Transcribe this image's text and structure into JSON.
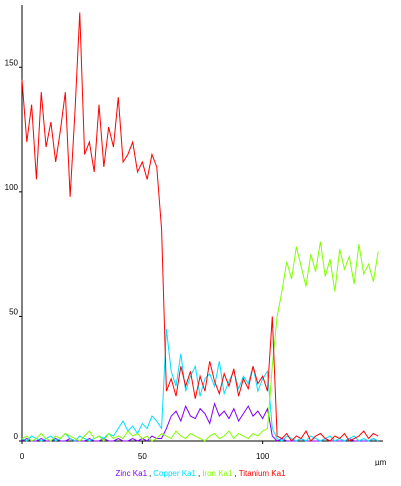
{
  "chart_data": {
    "type": "line",
    "x_label": "µm",
    "x": [
      0,
      2,
      4,
      6,
      8,
      10,
      12,
      14,
      16,
      18,
      20,
      22,
      24,
      26,
      28,
      30,
      32,
      34,
      36,
      38,
      40,
      42,
      44,
      46,
      48,
      50,
      52,
      54,
      56,
      58,
      60,
      62,
      64,
      66,
      68,
      70,
      72,
      74,
      76,
      78,
      80,
      82,
      84,
      86,
      88,
      90,
      92,
      94,
      96,
      98,
      100,
      102,
      104,
      106,
      108,
      110,
      112,
      114,
      116,
      118,
      120,
      122,
      124,
      126,
      128,
      130,
      132,
      134,
      136,
      138,
      140,
      142,
      144,
      146,
      148
    ],
    "series": [
      {
        "name": "Zinc Ka1",
        "color": "#8000ff",
        "values": [
          0,
          1,
          0,
          0,
          1,
          0,
          0,
          1,
          0,
          0,
          1,
          0,
          0,
          0,
          1,
          0,
          0,
          1,
          0,
          0,
          1,
          0,
          0,
          1,
          0,
          1,
          0,
          2,
          1,
          1,
          5,
          10,
          12,
          8,
          14,
          10,
          9,
          13,
          11,
          7,
          15,
          10,
          12,
          9,
          13,
          8,
          11,
          14,
          10,
          12,
          9,
          13,
          2,
          0,
          1,
          0,
          0,
          0,
          1,
          0,
          0,
          0,
          0,
          1,
          0,
          0,
          0,
          0,
          1,
          0,
          0,
          0,
          0,
          1,
          0
        ]
      },
      {
        "name": "Copper Ka1",
        "color": "#00e0ff",
        "values": [
          1,
          0,
          2,
          1,
          0,
          1,
          2,
          0,
          1,
          3,
          1,
          0,
          2,
          1,
          0,
          1,
          2,
          1,
          3,
          2,
          5,
          8,
          4,
          6,
          3,
          7,
          5,
          10,
          8,
          5,
          45,
          28,
          22,
          35,
          20,
          26,
          30,
          18,
          25,
          27,
          22,
          32,
          19,
          24,
          28,
          21,
          26,
          23,
          30,
          20,
          25,
          28,
          5,
          1,
          0,
          2,
          1,
          0,
          1,
          0,
          2,
          1,
          0,
          1,
          2,
          0,
          1,
          0,
          1,
          2,
          0,
          1,
          0,
          1,
          0
        ]
      },
      {
        "name": "Iron Ka1",
        "color": "#80ff00",
        "values": [
          1,
          2,
          0,
          1,
          3,
          1,
          0,
          2,
          1,
          3,
          2,
          1,
          0,
          2,
          4,
          1,
          2,
          0,
          3,
          1,
          2,
          1,
          4,
          2,
          3,
          1,
          2,
          0,
          1,
          3,
          2,
          1,
          4,
          2,
          1,
          3,
          2,
          1,
          0,
          2,
          3,
          1,
          2,
          4,
          1,
          3,
          2,
          1,
          3,
          2,
          4,
          5,
          30,
          50,
          60,
          72,
          65,
          78,
          70,
          62,
          75,
          68,
          80,
          66,
          73,
          60,
          77,
          69,
          74,
          63,
          79,
          67,
          71,
          64,
          76
        ]
      },
      {
        "name": "Titanium Ka1",
        "color": "#ff0000",
        "values": [
          145,
          120,
          135,
          105,
          140,
          118,
          128,
          112,
          125,
          140,
          98,
          132,
          172,
          115,
          120,
          108,
          135,
          110,
          126,
          118,
          138,
          112,
          115,
          120,
          108,
          112,
          105,
          115,
          110,
          85,
          20,
          25,
          18,
          30,
          22,
          28,
          17,
          26,
          20,
          32,
          24,
          19,
          27,
          22,
          29,
          18,
          25,
          21,
          30,
          23,
          26,
          20,
          50,
          2,
          1,
          3,
          0,
          2,
          1,
          4,
          0,
          2,
          3,
          1,
          0,
          2,
          1,
          3,
          0,
          1,
          2,
          4,
          1,
          3,
          2
        ]
      }
    ],
    "legend_separator": ",",
    "xlim": [
      0,
      150
    ],
    "xticks": [
      0,
      50,
      100
    ],
    "ylim": [
      0,
      175
    ],
    "yticks": [
      0,
      50,
      100,
      150
    ],
    "grid": false
  }
}
